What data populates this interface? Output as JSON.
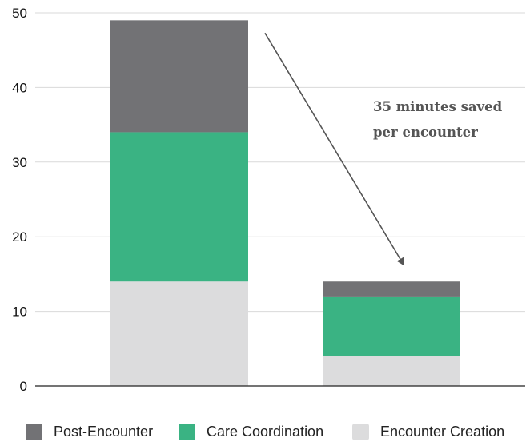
{
  "chart_data": {
    "type": "bar",
    "stacked": true,
    "categories": [
      "",
      ""
    ],
    "series": [
      {
        "name": "Encounter Creation",
        "values": [
          14,
          4
        ],
        "color": "#dcdcdd"
      },
      {
        "name": "Care Coordination",
        "values": [
          20,
          8
        ],
        "color": "#3ab383"
      },
      {
        "name": "Post-Encounter",
        "values": [
          15,
          2
        ],
        "color": "#727275"
      }
    ],
    "title": "",
    "xlabel": "",
    "ylabel": "",
    "ylim": [
      0,
      50
    ],
    "yticks": [
      0,
      10,
      20,
      30,
      40,
      50
    ],
    "grid": true,
    "legend_position": "bottom",
    "legend_order": [
      "Post-Encounter",
      "Care Coordination",
      "Encounter Creation"
    ],
    "annotation": {
      "lines": [
        "35 minutes saved",
        "per encounter"
      ],
      "arrow": "from top of first bar to top of second bar"
    }
  }
}
